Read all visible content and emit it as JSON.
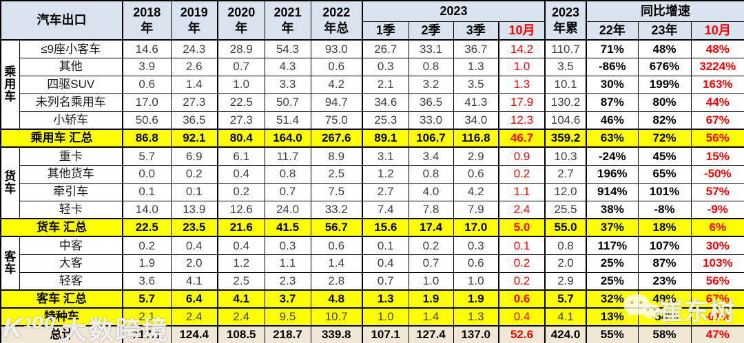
{
  "header": {
    "title": "汽车出口",
    "years": [
      "2018\n年",
      "2019\n年",
      "2020\n年",
      "2021\n年",
      "2022\n年总"
    ],
    "q2023_label": "2023",
    "q_subs": [
      "1季",
      "2季",
      "3季",
      "10月"
    ],
    "cum_label": "2023\n年累",
    "yoy_label": "同比增速",
    "yoy_subs": [
      "22年",
      "23年",
      "10月"
    ]
  },
  "colors": {
    "header_bg": "#D9E3EF",
    "summary_bg": "#FFFF00",
    "total_bg": "#F0E7D4",
    "highlight_red": "#FF0000"
  },
  "watermarks": {
    "bottom_left_logo": "K¹⁰⁰",
    "bottom_left_text": "大数跨境",
    "right_icon": "wechat-icon",
    "right_text": "崔东树"
  },
  "chart_data": {
    "type": "table",
    "title": "汽车出口",
    "columns": [
      "2018年",
      "2019年",
      "2020年",
      "2021年",
      "2022年总",
      "2023 1季",
      "2023 2季",
      "2023 3季",
      "2023 10月",
      "2023年累",
      "同比增速 22年",
      "同比增速 23年",
      "同比增速 10月"
    ],
    "rows": [
      {
        "group": {
          "label": "乘用车",
          "en": "passenger-car",
          "span": 5
        },
        "row_type": "data",
        "label": "≤9座小客车",
        "values": [
          "14.6",
          "24.3",
          "28.9",
          "54.3",
          "93.0",
          "26.7",
          "33.1",
          "36.7",
          "14.2",
          "110.7",
          "71%",
          "48%",
          "48%"
        ]
      },
      {
        "row_type": "data",
        "label": "其他",
        "values": [
          "3.9",
          "2.6",
          "0.7",
          "4.3",
          "0.6",
          "0.3",
          "0.8",
          "1.3",
          "1.0",
          "3.5",
          "-86%",
          "676%",
          "3224%"
        ]
      },
      {
        "row_type": "data",
        "label": "四驱SUV",
        "values": [
          "0.6",
          "1.4",
          "1.0",
          "3.3",
          "4.2",
          "2.1",
          "3.2",
          "3.5",
          "1.3",
          "10.1",
          "30%",
          "199%",
          "163%"
        ]
      },
      {
        "row_type": "data",
        "label": "未列名乘用车",
        "values": [
          "17.0",
          "27.3",
          "22.5",
          "50.7",
          "94.7",
          "34.6",
          "36.5",
          "41.3",
          "17.9",
          "130.2",
          "87%",
          "80%",
          "44%"
        ]
      },
      {
        "row_type": "data",
        "label": "小轿车",
        "values": [
          "50.6",
          "36.5",
          "27.3",
          "51.4",
          "75.0",
          "25.3",
          "33.0",
          "34.0",
          "12.3",
          "104.6",
          "46%",
          "82%",
          "67%"
        ]
      },
      {
        "row_type": "summary",
        "label": "乘用车 汇总",
        "values": [
          "86.8",
          "92.1",
          "80.4",
          "164.0",
          "267.6",
          "89.1",
          "106.7",
          "116.8",
          "46.7",
          "359.2",
          "63%",
          "72%",
          "56%"
        ]
      },
      {
        "group": {
          "label": "货车",
          "en": "truck",
          "span": 4
        },
        "row_type": "data",
        "label": "重卡",
        "values": [
          "5.7",
          "6.9",
          "6.1",
          "11.7",
          "8.9",
          "3.1",
          "3.4",
          "2.9",
          "0.9",
          "10.3",
          "-24%",
          "45%",
          "15%"
        ]
      },
      {
        "row_type": "data",
        "label": "其他货车",
        "values": [
          "0.0",
          "0.2",
          "0.4",
          "0.8",
          "2.5",
          "1.2",
          "0.8",
          "0.6",
          "0.2",
          "2.7",
          "196%",
          "65%",
          "-50%"
        ]
      },
      {
        "row_type": "data",
        "label": "牵引车",
        "values": [
          "0.1",
          "0.1",
          "0.2",
          "0.7",
          "7.5",
          "2.7",
          "4.0",
          "4.2",
          "1.1",
          "12.0",
          "914%",
          "101%",
          "57%"
        ]
      },
      {
        "row_type": "data",
        "label": "轻卡",
        "values": [
          "14.0",
          "13.9",
          "12.6",
          "24.0",
          "33.2",
          "7.4",
          "7.8",
          "7.9",
          "2.4",
          "25.5",
          "38%",
          "-8%",
          "-9%"
        ]
      },
      {
        "row_type": "summary",
        "label": "货车 汇总",
        "values": [
          "22.5",
          "23.5",
          "21.6",
          "41.5",
          "56.7",
          "15.6",
          "17.4",
          "17.0",
          "5.0",
          "55.0",
          "37%",
          "18%",
          "6%"
        ]
      },
      {
        "group": {
          "label": "客车",
          "en": "bus",
          "span": 3
        },
        "row_type": "data",
        "label": "中客",
        "values": [
          "0.2",
          "0.4",
          "0.4",
          "0.3",
          "0.6",
          "0.1",
          "0.2",
          "0.3",
          "0.1",
          "0.8",
          "117%",
          "107%",
          "30%"
        ]
      },
      {
        "row_type": "data",
        "label": "大客",
        "values": [
          "1.9",
          "2.0",
          "1.2",
          "1.1",
          "1.4",
          "0.4",
          "0.7",
          "0.6",
          "0.2",
          "2.0",
          "25%",
          "87%",
          "103%"
        ]
      },
      {
        "row_type": "data",
        "label": "轻客",
        "values": [
          "3.6",
          "4.1",
          "2.5",
          "2.3",
          "2.8",
          "0.7",
          "1.0",
          "1.0",
          "0.2",
          "2.9",
          "25%",
          "23%",
          "56%"
        ]
      },
      {
        "row_type": "summary",
        "label": "客车 汇总",
        "values": [
          "5.7",
          "6.4",
          "4.1",
          "3.7",
          "4.8",
          "1.3",
          "1.9",
          "1.9",
          "0.6",
          "5.7",
          "32%",
          "49%",
          "67%"
        ]
      },
      {
        "row_type": "special",
        "label": "特种车",
        "values": [
          "2.1",
          "2.4",
          "2.4",
          "9.5",
          "10.7",
          "1.0",
          "1.4",
          "1.3",
          "0.4",
          "4.1",
          "13%",
          "-54%",
          "-61%"
        ]
      },
      {
        "row_type": "total",
        "label": "总计",
        "values": [
          "117.1",
          "124.4",
          "108.5",
          "218.7",
          "339.8",
          "107.1",
          "127.4",
          "137.0",
          "52.6",
          "424.0",
          "55%",
          "58%",
          "47%"
        ]
      }
    ]
  }
}
